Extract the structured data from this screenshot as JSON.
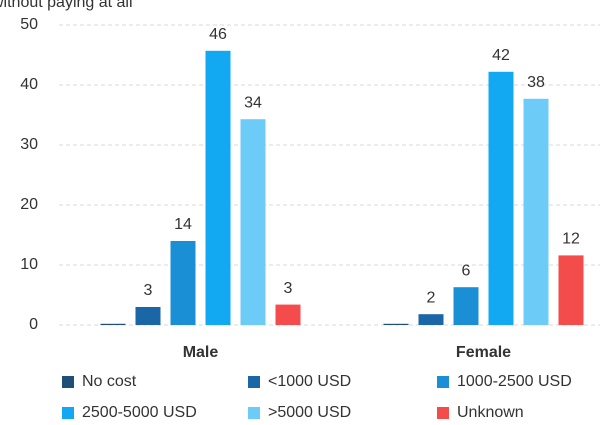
{
  "chart_data": {
    "type": "bar",
    "title": "without paying at all",
    "categories": [
      "Male",
      "Female"
    ],
    "series": [
      {
        "name": "No cost",
        "color": "#1f4e79",
        "values": [
          0.2,
          0.2
        ],
        "value_labels": [
          null,
          null
        ]
      },
      {
        "name": "<1000 USD",
        "color": "#1a66a6",
        "values": [
          3,
          1.8
        ],
        "value_labels": [
          "3",
          "2"
        ]
      },
      {
        "name": "1000-2500 USD",
        "color": "#1b8fd6",
        "values": [
          14,
          6.3
        ],
        "value_labels": [
          "14",
          "6"
        ]
      },
      {
        "name": "2500-5000 USD",
        "color": "#12a9f2",
        "values": [
          45.7,
          42.2
        ],
        "value_labels": [
          "46",
          "42"
        ]
      },
      {
        "name": ">5000 USD",
        "color": "#6dcbf8",
        "values": [
          34.3,
          37.7
        ],
        "value_labels": [
          "34",
          "38"
        ]
      },
      {
        "name": "Unknown",
        "color": "#f44b4b",
        "values": [
          3.4,
          11.6
        ],
        "value_labels": [
          "3",
          "12"
        ]
      }
    ],
    "ylim": [
      0,
      50
    ],
    "yticks": [
      0,
      10,
      20,
      30,
      40,
      50
    ],
    "grid": true
  }
}
